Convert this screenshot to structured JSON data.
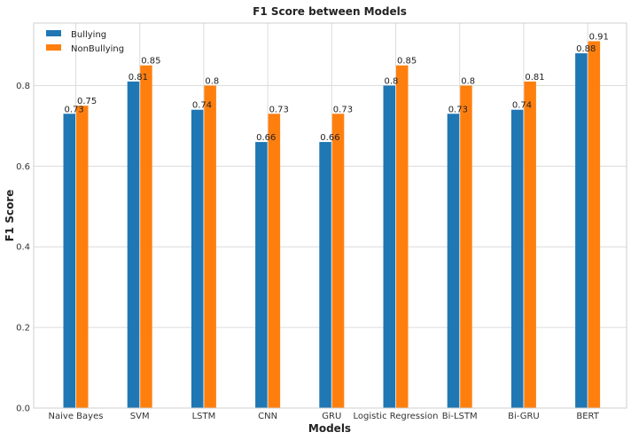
{
  "chart_data": {
    "type": "bar",
    "title": "F1 Score between Models",
    "xlabel": "Models",
    "ylabel": "F1 Score",
    "ylim": [
      0,
      0.955
    ],
    "yticks": [
      "0.0",
      "0.2",
      "0.4",
      "0.6",
      "0.8"
    ],
    "ytick_values": [
      0,
      0.2,
      0.4,
      0.6,
      0.8
    ],
    "grid": true,
    "legend_position": "top-left",
    "categories": [
      "Naive Bayes",
      "SVM",
      "LSTM",
      "CNN",
      "GRU",
      "Logistic Regression",
      "Bi-LSTM",
      "Bi-GRU",
      "BERT"
    ],
    "series": [
      {
        "name": "Bullying",
        "color": "#1f77b4",
        "values": [
          0.73,
          0.81,
          0.74,
          0.66,
          0.66,
          0.8,
          0.73,
          0.74,
          0.88
        ],
        "labels": [
          "0.73",
          "0.81",
          "0.74",
          "0.66",
          "0.66",
          "0.8",
          "0.73",
          "0.74",
          "0.88"
        ]
      },
      {
        "name": "NonBullying",
        "color": "#ff7f0e",
        "values": [
          0.75,
          0.85,
          0.8,
          0.73,
          0.73,
          0.85,
          0.8,
          0.81,
          0.91
        ],
        "labels": [
          "0.75",
          "0.85",
          "0.8",
          "0.73",
          "0.73",
          "0.85",
          "0.8",
          "0.81",
          "0.91"
        ]
      }
    ]
  }
}
